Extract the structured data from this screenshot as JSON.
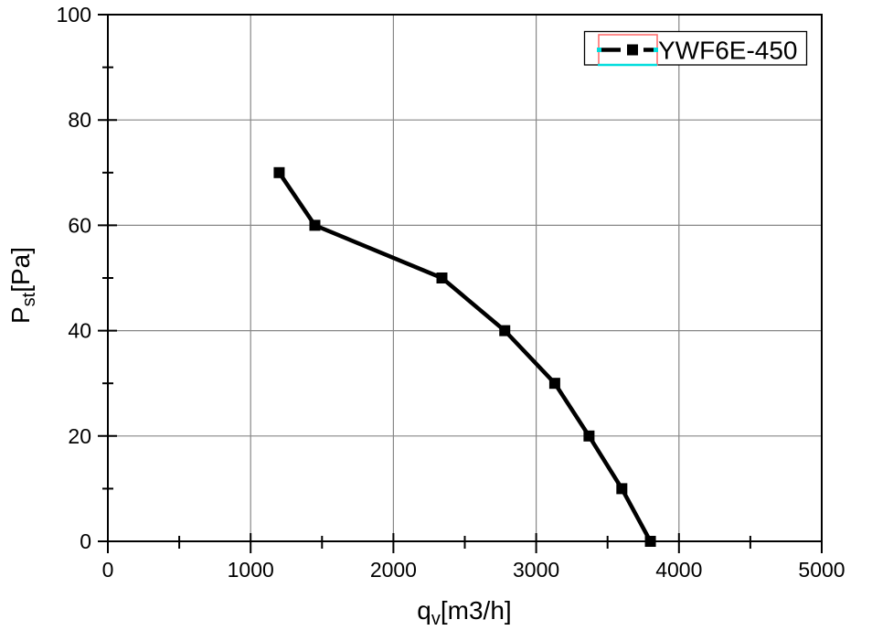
{
  "chart_data": {
    "type": "line",
    "xlabel": {
      "base": "q",
      "sub": "v",
      "unit": "[m3/h]"
    },
    "ylabel": {
      "base": "P",
      "sub": "st",
      "unit": "[Pa]"
    },
    "xlim": [
      0,
      5000
    ],
    "ylim": [
      0,
      100
    ],
    "x_major_ticks": [
      0,
      1000,
      2000,
      3000,
      4000,
      5000
    ],
    "x_minor_ticks": [
      500,
      1500,
      2500,
      3500,
      4500
    ],
    "y_major_ticks": [
      0,
      20,
      40,
      60,
      80,
      100
    ],
    "y_minor_ticks": [
      10,
      30,
      50,
      70,
      90
    ],
    "grid": {
      "show": true,
      "x_lines": [
        1000,
        2000,
        3000,
        4000
      ],
      "y_lines": [
        20,
        40,
        60,
        80
      ]
    },
    "series": [
      {
        "name": "YWF6E-450",
        "marker": "filled-square",
        "line_style": "solid",
        "points": [
          [
            1200,
            70
          ],
          [
            1450,
            60
          ],
          [
            2340,
            50
          ],
          [
            2780,
            40
          ],
          [
            3130,
            30
          ],
          [
            3370,
            20
          ],
          [
            3600,
            10
          ],
          [
            3800,
            0
          ]
        ]
      }
    ],
    "legend": {
      "position": "top-right",
      "label": "YWF6E-450",
      "selected": true
    }
  },
  "colors": {
    "background": "#ffffff",
    "axis": "#000000",
    "grid": "#878787",
    "series": "#000000",
    "text": "#000000",
    "selection_border": "#ff7070",
    "selection_handle": "#00dddd"
  }
}
